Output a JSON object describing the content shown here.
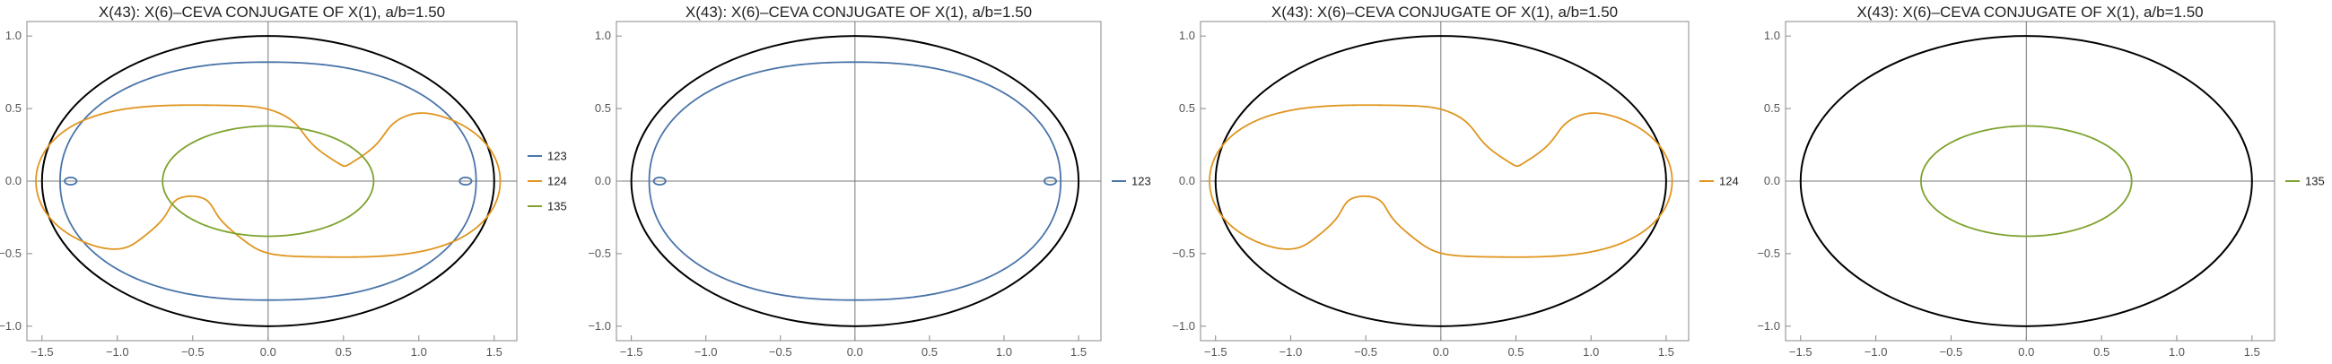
{
  "chart_data": [
    {
      "type": "line",
      "title": "X(43): X(6)–CEVA CONJUGATE OF X(1), a/b=1.50",
      "xlabel": "",
      "ylabel": "",
      "xlim": [
        -1.6,
        1.65
      ],
      "ylim": [
        -1.1,
        1.1
      ],
      "xticks": [
        -1.5,
        -1.0,
        -0.5,
        0.0,
        0.5,
        1.0,
        1.5
      ],
      "xtick_labels": [
        "−1.5",
        "−1.0",
        "−0.5",
        "0.0",
        "0.5",
        "1.0",
        "1.5"
      ],
      "yticks": [
        -1.0,
        -0.5,
        0.0,
        0.5,
        1.0
      ],
      "ytick_labels": [
        "−1.0",
        "−0.5",
        "0.0",
        "0.5",
        "1.0"
      ],
      "grid": false,
      "legend_position": "right",
      "ellipse": {
        "a": 1.5,
        "b": 1.0,
        "color": "#000000"
      },
      "series": [
        {
          "name": "123",
          "color": "#4a74a9",
          "shape": "inner-oval",
          "rx": 1.38,
          "ry": 0.82,
          "loop_x": 1.31
        },
        {
          "name": "124",
          "color": "#e0951f",
          "shape": "looped-curve",
          "x_range": [
            -1.48,
            1.52
          ],
          "y_range": [
            -0.72,
            0.72
          ],
          "cusps": [
            [
              0.58,
              0.27
            ],
            [
              -0.56,
              -0.27
            ]
          ]
        },
        {
          "name": "135",
          "color": "#7ea22d",
          "shape": "ellipse",
          "rx": 0.7,
          "ry": 0.38
        }
      ]
    },
    {
      "type": "line",
      "title": "X(43): X(6)–CEVA CONJUGATE OF X(1), a/b=1.50",
      "xlabel": "",
      "ylabel": "",
      "xlim": [
        -1.6,
        1.65
      ],
      "ylim": [
        -1.1,
        1.1
      ],
      "xticks": [
        -1.5,
        -1.0,
        -0.5,
        0.0,
        0.5,
        1.0,
        1.5
      ],
      "xtick_labels": [
        "−1.5",
        "−1.0",
        "−0.5",
        "0.0",
        "0.5",
        "1.0",
        "1.5"
      ],
      "yticks": [
        -1.0,
        -0.5,
        0.0,
        0.5,
        1.0
      ],
      "ytick_labels": [
        "−1.0",
        "−0.5",
        "0.0",
        "0.5",
        "1.0"
      ],
      "grid": false,
      "legend_position": "right",
      "ellipse": {
        "a": 1.5,
        "b": 1.0,
        "color": "#000000"
      },
      "series": [
        {
          "name": "123",
          "color": "#4a74a9",
          "shape": "inner-oval",
          "rx": 1.38,
          "ry": 0.82,
          "loop_x": 1.31
        }
      ]
    },
    {
      "type": "line",
      "title": "X(43): X(6)–CEVA CONJUGATE OF X(1), a/b=1.50",
      "xlabel": "",
      "ylabel": "",
      "xlim": [
        -1.6,
        1.65
      ],
      "ylim": [
        -1.1,
        1.1
      ],
      "xticks": [
        -1.5,
        -1.0,
        -0.5,
        0.0,
        0.5,
        1.0,
        1.5
      ],
      "xtick_labels": [
        "−1.5",
        "−1.0",
        "−0.5",
        "0.0",
        "0.5",
        "1.0",
        "1.5"
      ],
      "yticks": [
        -1.0,
        -0.5,
        0.0,
        0.5,
        1.0
      ],
      "ytick_labels": [
        "−1.0",
        "−0.5",
        "0.0",
        "0.5",
        "1.0"
      ],
      "grid": false,
      "legend_position": "right",
      "ellipse": {
        "a": 1.5,
        "b": 1.0,
        "color": "#000000"
      },
      "series": [
        {
          "name": "124",
          "color": "#e0951f",
          "shape": "looped-curve",
          "x_range": [
            -1.48,
            1.52
          ],
          "y_range": [
            -0.72,
            0.72
          ],
          "cusps": [
            [
              0.58,
              0.27
            ],
            [
              -0.56,
              -0.27
            ]
          ]
        }
      ]
    },
    {
      "type": "line",
      "title": "X(43): X(6)–CEVA CONJUGATE OF X(1), a/b=1.50",
      "xlabel": "",
      "ylabel": "",
      "xlim": [
        -1.6,
        1.65
      ],
      "ylim": [
        -1.1,
        1.1
      ],
      "xticks": [
        -1.5,
        -1.0,
        -0.5,
        0.0,
        0.5,
        1.0,
        1.5
      ],
      "xtick_labels": [
        "−1.5",
        "−1.0",
        "−0.5",
        "0.0",
        "0.5",
        "1.0",
        "1.5"
      ],
      "yticks": [
        -1.0,
        -0.5,
        0.0,
        0.5,
        1.0
      ],
      "ytick_labels": [
        "−1.0",
        "−0.5",
        "0.0",
        "0.5",
        "1.0"
      ],
      "grid": false,
      "legend_position": "right",
      "ellipse": {
        "a": 1.5,
        "b": 1.0,
        "color": "#000000"
      },
      "series": [
        {
          "name": "135",
          "color": "#7ea22d",
          "shape": "ellipse",
          "rx": 0.7,
          "ry": 0.38
        }
      ]
    }
  ]
}
